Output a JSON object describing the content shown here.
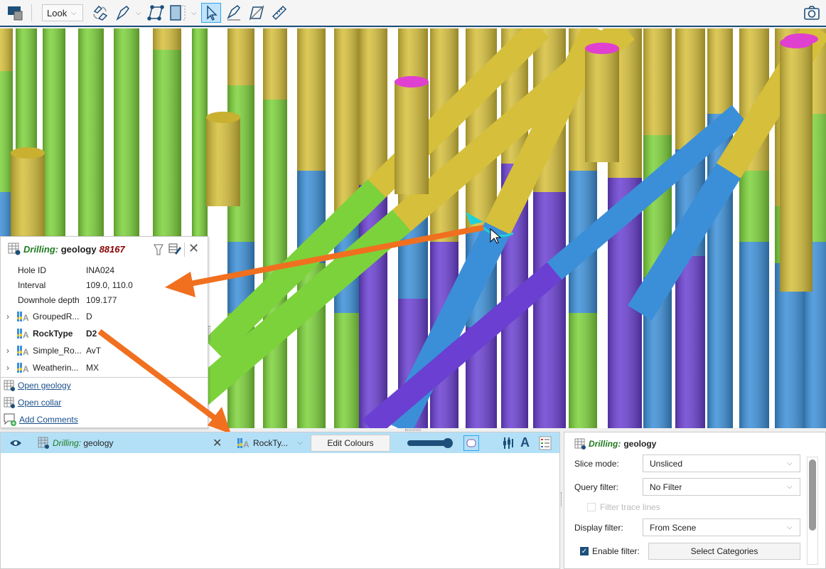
{
  "toolbar": {
    "view_mode": "Look",
    "icons": [
      "clear-scene-icon",
      "rotate-icon",
      "draw-line-icon",
      "polygon-icon",
      "slice-icon",
      "select-icon",
      "slicer-icon",
      "polygon-slice-icon",
      "ruler-icon",
      "camera-icon"
    ],
    "accent": "#2ea6ea"
  },
  "popup": {
    "title_prefix": "Drilling:",
    "title_name": "geology",
    "title_id": "88167",
    "fields": [
      {
        "key": "Hole ID",
        "value": "INA024"
      },
      {
        "key": "Interval",
        "value": "109.0, 110.0"
      },
      {
        "key": "Downhole depth",
        "value": "109.177"
      }
    ],
    "columns": [
      {
        "key": "GroupedR...",
        "value": "D",
        "expandable": true,
        "bold": false
      },
      {
        "key": "RockType",
        "value": "D2",
        "expandable": false,
        "bold": true
      },
      {
        "key": "Simple_Ro...",
        "value": "AvT",
        "expandable": true,
        "bold": false
      },
      {
        "key": "Weatherin...",
        "value": "MX",
        "expandable": true,
        "bold": false
      }
    ],
    "links": [
      "Open geology",
      "Open collar",
      "Add Comments"
    ]
  },
  "shape_list": {
    "item_prefix": "Drilling:",
    "item_name": "geology",
    "colour_by": "RockTy...",
    "edit_colours": "Edit Colours",
    "opacity": 1.0
  },
  "properties": {
    "title_prefix": "Drilling:",
    "title_name": "geology",
    "slice_mode_label": "Slice mode:",
    "slice_mode": "Unsliced",
    "query_filter_label": "Query filter:",
    "query_filter": "No Filter",
    "filter_trace_lines": "Filter trace lines",
    "display_filter_label": "Display filter:",
    "display_filter": "From Scene",
    "enable_filter_label": "Enable filter:",
    "enable_filter": true,
    "select_categories": "Select Categories"
  },
  "colors": {
    "green": "#7cd23a",
    "yellow": "#d6bf3a",
    "blue": "#3b8fd8",
    "purple": "#6a3fd2",
    "magenta": "#e040cf",
    "arrow": "#f07020"
  }
}
